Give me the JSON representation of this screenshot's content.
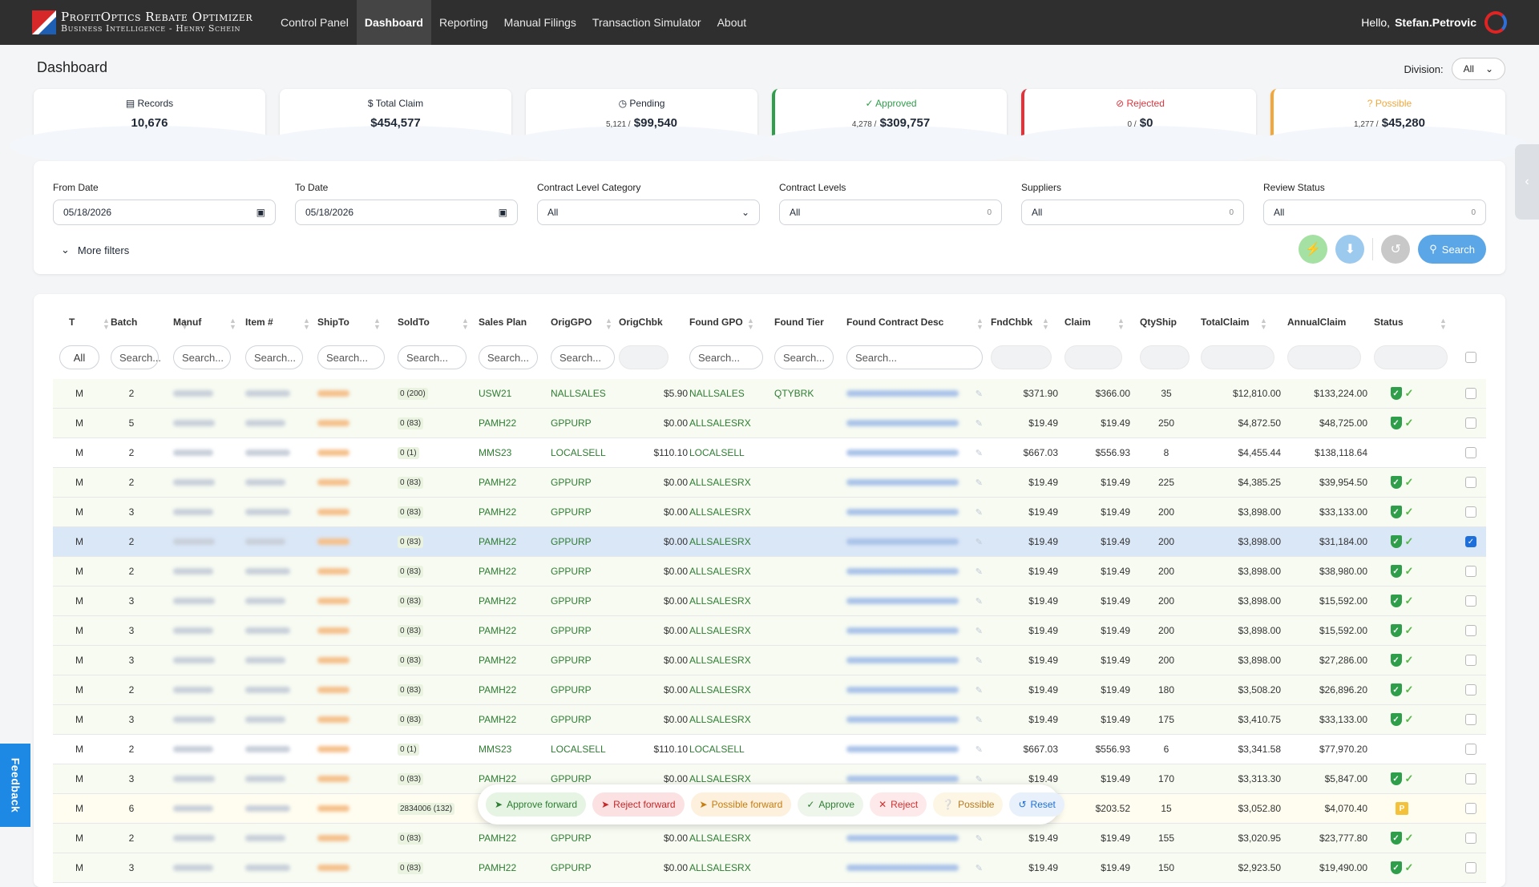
{
  "app": {
    "title": "ProfitOptics Rebate Optimizer",
    "subtitle": "Business Intelligence - Henry Schein"
  },
  "nav": {
    "items": [
      {
        "label": "Control Panel"
      },
      {
        "label": "Dashboard"
      },
      {
        "label": "Reporting"
      },
      {
        "label": "Manual Filings"
      },
      {
        "label": "Transaction Simulator"
      },
      {
        "label": "About"
      }
    ],
    "greeting": "Hello,",
    "user": "Stefan.Petrovic"
  },
  "page": {
    "title": "Dashboard",
    "division_label": "Division:",
    "division_value": "All"
  },
  "cards": [
    {
      "label": "Records",
      "count": "",
      "value": "10,676"
    },
    {
      "label": "$ Total Claim",
      "count": "",
      "value": "$454,577"
    },
    {
      "label": "Pending",
      "count": "5,121 /",
      "value": "$99,540"
    },
    {
      "label": "Approved",
      "count": "4,278 /",
      "value": "$309,757"
    },
    {
      "label": "Rejected",
      "count": "0 /",
      "value": "$0"
    },
    {
      "label": "Possible",
      "count": "1,277 /",
      "value": "$45,280"
    }
  ],
  "filters": {
    "from_date": {
      "label": "From Date",
      "value": "05/18/2026"
    },
    "to_date": {
      "label": "To Date",
      "value": "05/18/2026"
    },
    "contract_level_category": {
      "label": "Contract Level Category",
      "value": "All"
    },
    "contract_levels": {
      "label": "Contract Levels",
      "value": "All",
      "count": "0"
    },
    "suppliers": {
      "label": "Suppliers",
      "value": "All",
      "count": "0"
    },
    "review_status": {
      "label": "Review Status",
      "value": "All",
      "count": "0"
    },
    "more_filters": "More filters",
    "search_label": "Search"
  },
  "table": {
    "columns": [
      "T",
      "Batch",
      "Manuf",
      "Item #",
      "ShipTo",
      "SoldTo",
      "Sales Plan",
      "OrigGPO",
      "OrigChbk",
      "Found GPO",
      "Found Tier",
      "Found Contract Desc",
      "FndChbk",
      "Claim",
      "QtyShip",
      "TotalClaim",
      "AnnualClaim",
      "Status"
    ],
    "search_all": "All",
    "search_placeholder": "Search...",
    "rows": [
      {
        "t": "M",
        "batch": "2",
        "soldto": "0",
        "soldto_n": "(200)",
        "plan": "USW21",
        "origgpo": "NALLSALES",
        "origchbk": "$5.90",
        "foundgpo": "NALLSALES",
        "tier": "QTYBRK",
        "fndchbk": "$371.90",
        "claim": "$366.00",
        "qty": "35",
        "total": "$12,810.00",
        "annual": "$133,224.00",
        "status": "approved"
      },
      {
        "t": "M",
        "batch": "5",
        "soldto": "0",
        "soldto_n": "(83)",
        "plan": "PAMH22",
        "origgpo": "GPPURP",
        "origchbk": "$0.00",
        "foundgpo": "ALLSALESRX",
        "tier": "",
        "fndchbk": "$19.49",
        "claim": "$19.49",
        "qty": "250",
        "total": "$4,872.50",
        "annual": "$48,725.00",
        "status": "approved"
      },
      {
        "t": "M",
        "batch": "2",
        "soldto": "0",
        "soldto_n": "(1)",
        "plan": "MMS23",
        "origgpo": "LOCALSELL",
        "origchbk": "$110.10",
        "foundgpo": "LOCALSELL",
        "tier": "",
        "fndchbk": "$667.03",
        "claim": "$556.93",
        "qty": "8",
        "total": "$4,455.44",
        "annual": "$138,118.64",
        "status": "pending"
      },
      {
        "t": "M",
        "batch": "2",
        "soldto": "0",
        "soldto_n": "(83)",
        "plan": "PAMH22",
        "origgpo": "GPPURP",
        "origchbk": "$0.00",
        "foundgpo": "ALLSALESRX",
        "tier": "",
        "fndchbk": "$19.49",
        "claim": "$19.49",
        "qty": "225",
        "total": "$4,385.25",
        "annual": "$39,954.50",
        "status": "approved"
      },
      {
        "t": "M",
        "batch": "3",
        "soldto": "0",
        "soldto_n": "(83)",
        "plan": "PAMH22",
        "origgpo": "GPPURP",
        "origchbk": "$0.00",
        "foundgpo": "ALLSALESRX",
        "tier": "",
        "fndchbk": "$19.49",
        "claim": "$19.49",
        "qty": "200",
        "total": "$3,898.00",
        "annual": "$33,133.00",
        "status": "approved"
      },
      {
        "t": "M",
        "batch": "2",
        "soldto": "0",
        "soldto_n": "(83)",
        "plan": "PAMH22",
        "origgpo": "GPPURP",
        "origchbk": "$0.00",
        "foundgpo": "ALLSALESRX",
        "tier": "",
        "fndchbk": "$19.49",
        "claim": "$19.49",
        "qty": "200",
        "total": "$3,898.00",
        "annual": "$31,184.00",
        "status": "approved",
        "selected": true
      },
      {
        "t": "M",
        "batch": "2",
        "soldto": "0",
        "soldto_n": "(83)",
        "plan": "PAMH22",
        "origgpo": "GPPURP",
        "origchbk": "$0.00",
        "foundgpo": "ALLSALESRX",
        "tier": "",
        "fndchbk": "$19.49",
        "claim": "$19.49",
        "qty": "200",
        "total": "$3,898.00",
        "annual": "$38,980.00",
        "status": "approved"
      },
      {
        "t": "M",
        "batch": "3",
        "soldto": "0",
        "soldto_n": "(83)",
        "plan": "PAMH22",
        "origgpo": "GPPURP",
        "origchbk": "$0.00",
        "foundgpo": "ALLSALESRX",
        "tier": "",
        "fndchbk": "$19.49",
        "claim": "$19.49",
        "qty": "200",
        "total": "$3,898.00",
        "annual": "$15,592.00",
        "status": "approved"
      },
      {
        "t": "M",
        "batch": "3",
        "soldto": "0",
        "soldto_n": "(83)",
        "plan": "PAMH22",
        "origgpo": "GPPURP",
        "origchbk": "$0.00",
        "foundgpo": "ALLSALESRX",
        "tier": "",
        "fndchbk": "$19.49",
        "claim": "$19.49",
        "qty": "200",
        "total": "$3,898.00",
        "annual": "$15,592.00",
        "status": "approved"
      },
      {
        "t": "M",
        "batch": "3",
        "soldto": "0",
        "soldto_n": "(83)",
        "plan": "PAMH22",
        "origgpo": "GPPURP",
        "origchbk": "$0.00",
        "foundgpo": "ALLSALESRX",
        "tier": "",
        "fndchbk": "$19.49",
        "claim": "$19.49",
        "qty": "200",
        "total": "$3,898.00",
        "annual": "$27,286.00",
        "status": "approved"
      },
      {
        "t": "M",
        "batch": "2",
        "soldto": "0",
        "soldto_n": "(83)",
        "plan": "PAMH22",
        "origgpo": "GPPURP",
        "origchbk": "$0.00",
        "foundgpo": "ALLSALESRX",
        "tier": "",
        "fndchbk": "$19.49",
        "claim": "$19.49",
        "qty": "180",
        "total": "$3,508.20",
        "annual": "$26,896.20",
        "status": "approved"
      },
      {
        "t": "M",
        "batch": "3",
        "soldto": "0",
        "soldto_n": "(83)",
        "plan": "PAMH22",
        "origgpo": "GPPURP",
        "origchbk": "$0.00",
        "foundgpo": "ALLSALESRX",
        "tier": "",
        "fndchbk": "$19.49",
        "claim": "$19.49",
        "qty": "175",
        "total": "$3,410.75",
        "annual": "$33,133.00",
        "status": "approved"
      },
      {
        "t": "M",
        "batch": "2",
        "soldto": "0",
        "soldto_n": "(1)",
        "plan": "MMS23",
        "origgpo": "LOCALSELL",
        "origchbk": "$110.10",
        "foundgpo": "LOCALSELL",
        "tier": "",
        "fndchbk": "$667.03",
        "claim": "$556.93",
        "qty": "6",
        "total": "$3,341.58",
        "annual": "$77,970.20",
        "status": "pending"
      },
      {
        "t": "M",
        "batch": "3",
        "soldto": "0",
        "soldto_n": "(83)",
        "plan": "PAMH22",
        "origgpo": "GPPURP",
        "origchbk": "$0.00",
        "foundgpo": "ALLSALESRX",
        "tier": "",
        "fndchbk": "$19.49",
        "claim": "$19.49",
        "qty": "170",
        "total": "$3,313.30",
        "annual": "$5,847.00",
        "status": "approved"
      },
      {
        "t": "M",
        "batch": "6",
        "soldto": "2834006",
        "soldto_n": "(132)",
        "plan": "",
        "origgpo": "",
        "origchbk": "",
        "foundgpo": "",
        "tier": "",
        "fndchbk": "",
        "claim": "$203.52",
        "qty": "15",
        "total": "$3,052.80",
        "annual": "$4,070.40",
        "status": "possible"
      },
      {
        "t": "M",
        "batch": "2",
        "soldto": "0",
        "soldto_n": "(83)",
        "plan": "PAMH22",
        "origgpo": "GPPURP",
        "origchbk": "$0.00",
        "foundgpo": "ALLSALESRX",
        "tier": "",
        "fndchbk": "$19.49",
        "claim": "$19.49",
        "qty": "155",
        "total": "$3,020.95",
        "annual": "$23,777.80",
        "status": "approved"
      },
      {
        "t": "M",
        "batch": "3",
        "soldto": "0",
        "soldto_n": "(83)",
        "plan": "PAMH22",
        "origgpo": "GPPURP",
        "origchbk": "$0.00",
        "foundgpo": "ALLSALESRX",
        "tier": "",
        "fndchbk": "$19.49",
        "claim": "$19.49",
        "qty": "150",
        "total": "$2,923.50",
        "annual": "$19,490.00",
        "status": "approved"
      }
    ]
  },
  "actions": [
    {
      "label": "Approve forward",
      "icon": "send-icon"
    },
    {
      "label": "Reject forward",
      "icon": "send-icon"
    },
    {
      "label": "Possible forward",
      "icon": "send-icon"
    },
    {
      "label": "Approve",
      "icon": "check-icon"
    },
    {
      "label": "Reject",
      "icon": "x-icon"
    },
    {
      "label": "Possible",
      "icon": "question-icon"
    },
    {
      "label": "Reset",
      "icon": "undo-icon"
    }
  ],
  "feedback_label": "Feedback"
}
